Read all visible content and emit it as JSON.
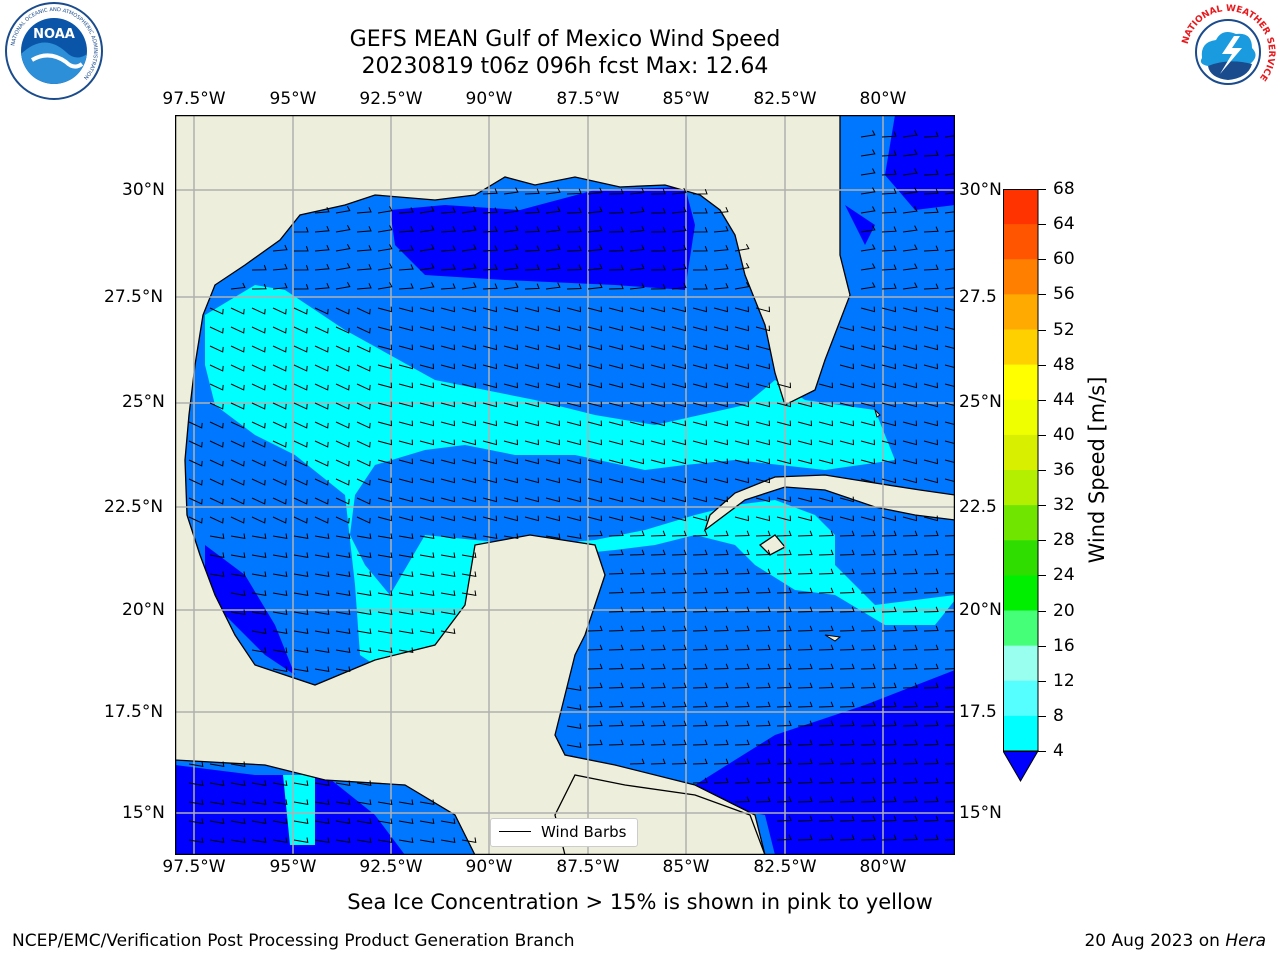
{
  "title": {
    "line1": "GEFS MEAN Gulf of Mexico Wind Speed",
    "line2": "20230819 t06z 096h fcst   Max: 12.64"
  },
  "longitude_labels": [
    "97.5°W",
    "95°W",
    "92.5°W",
    "90°W",
    "87.5°W",
    "85°W",
    "82.5°W",
    "80°W"
  ],
  "latitude_labels_left": [
    "30°N",
    "27.5°N",
    "25°N",
    "22.5°N",
    "20°N",
    "17.5°N",
    "15°N"
  ],
  "latitude_labels_right": [
    "30°N",
    "27.5",
    "25°N",
    "22.5",
    "20°N",
    "17.5",
    "15°N"
  ],
  "colorbar": {
    "label": "Wind Speed [m/s]",
    "ticks": [
      "68",
      "64",
      "60",
      "56",
      "52",
      "48",
      "44",
      "40",
      "36",
      "32",
      "28",
      "24",
      "20",
      "16",
      "12",
      "8",
      "4"
    ],
    "colors": [
      "#ff0000",
      "#ff3300",
      "#ff5500",
      "#ff8000",
      "#ffaa00",
      "#ffd000",
      "#ffff00",
      "#f0ff00",
      "#d8f000",
      "#b4ee00",
      "#70e600",
      "#30dd00",
      "#00ee00",
      "#44ff77",
      "#99ffee",
      "#55ffff",
      "#00ffff",
      "#0077ff"
    ],
    "under_color": "#0000ff"
  },
  "legend": {
    "label": "Wind Barbs"
  },
  "footer": {
    "note": "Sea Ice Concentration > 15% is shown in pink to yellow",
    "left": "NCEP/EMC/Verification Post Processing Product Generation Branch",
    "right_date": "20 Aug 2023 on ",
    "right_host": "Hera"
  },
  "logos": {
    "noaa_text": "NOAA",
    "noaa_ring": "NATIONAL OCEANIC AND ATMOSPHERIC ADMINISTRATION",
    "noaa_ring_bottom": "U.S. DEPARTMENT OF COMMERCE",
    "nws_ring": "NATIONAL WEATHER SERVICE"
  },
  "map_colors": {
    "land": "#eeeedc",
    "grid": "#b0b0b0",
    "wind_4_8": "#0077ff",
    "wind_under_4": "#0000ff",
    "wind_8_12": "#00ffff"
  }
}
